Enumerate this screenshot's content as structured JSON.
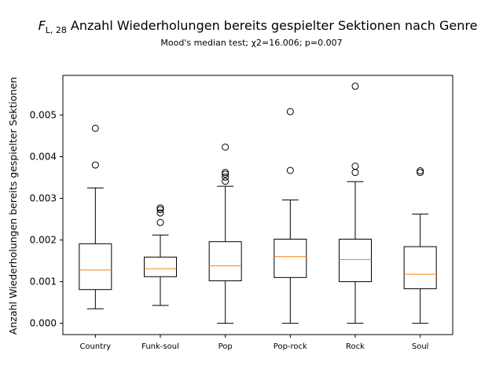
{
  "chart_data": {
    "type": "box",
    "title_symbol": "F",
    "title_subscript": "L, 28",
    "title_text": "Anzahl Wiederholungen bereits gespielter Sektionen nach Genre",
    "subtitle": "Mood's median test; χ2=16.006; p=0.007",
    "xlabel": "",
    "ylabel": "Anzahl Wiederholungen bereits gespielter Sektionen",
    "ylim": [
      -0.00027,
      0.00595
    ],
    "yticks": [
      0.0,
      0.001,
      0.002,
      0.003,
      0.004,
      0.005
    ],
    "ytick_labels": [
      "0.000",
      "0.001",
      "0.002",
      "0.003",
      "0.004",
      "0.005"
    ],
    "grid": false,
    "box_color": "#000000",
    "median_color": "#ff7f0e",
    "categories": [
      "Country",
      "Funk-soul",
      "Pop",
      "Pop-rock",
      "Rock",
      "Soul"
    ],
    "boxes": [
      {
        "whisker_low": 0.00035,
        "q1": 0.00081,
        "median": 0.00128,
        "q3": 0.00191,
        "whisker_high": 0.00325,
        "outliers": [
          0.0038,
          0.00468
        ]
      },
      {
        "whisker_low": 0.00043,
        "q1": 0.00112,
        "median": 0.00131,
        "q3": 0.00159,
        "whisker_high": 0.00212,
        "outliers": [
          0.00242,
          0.00265,
          0.00273,
          0.00277
        ]
      },
      {
        "whisker_low": 0.0,
        "q1": 0.00102,
        "median": 0.00138,
        "q3": 0.00196,
        "whisker_high": 0.00329,
        "outliers": [
          0.00341,
          0.00351,
          0.00358,
          0.00362,
          0.00423
        ]
      },
      {
        "whisker_low": 0.0,
        "q1": 0.0011,
        "median": 0.0016,
        "q3": 0.00202,
        "whisker_high": 0.00296,
        "outliers": [
          0.00367,
          0.00508
        ]
      },
      {
        "whisker_low": 0.0,
        "q1": 0.001,
        "median": 0.00153,
        "q3": 0.00202,
        "whisker_high": 0.0034,
        "outliers": [
          0.00362,
          0.00377,
          0.00569
        ]
      },
      {
        "whisker_low": 0.0,
        "q1": 0.00083,
        "median": 0.00118,
        "q3": 0.00184,
        "whisker_high": 0.00262,
        "outliers": [
          0.00362,
          0.00366
        ]
      }
    ]
  }
}
